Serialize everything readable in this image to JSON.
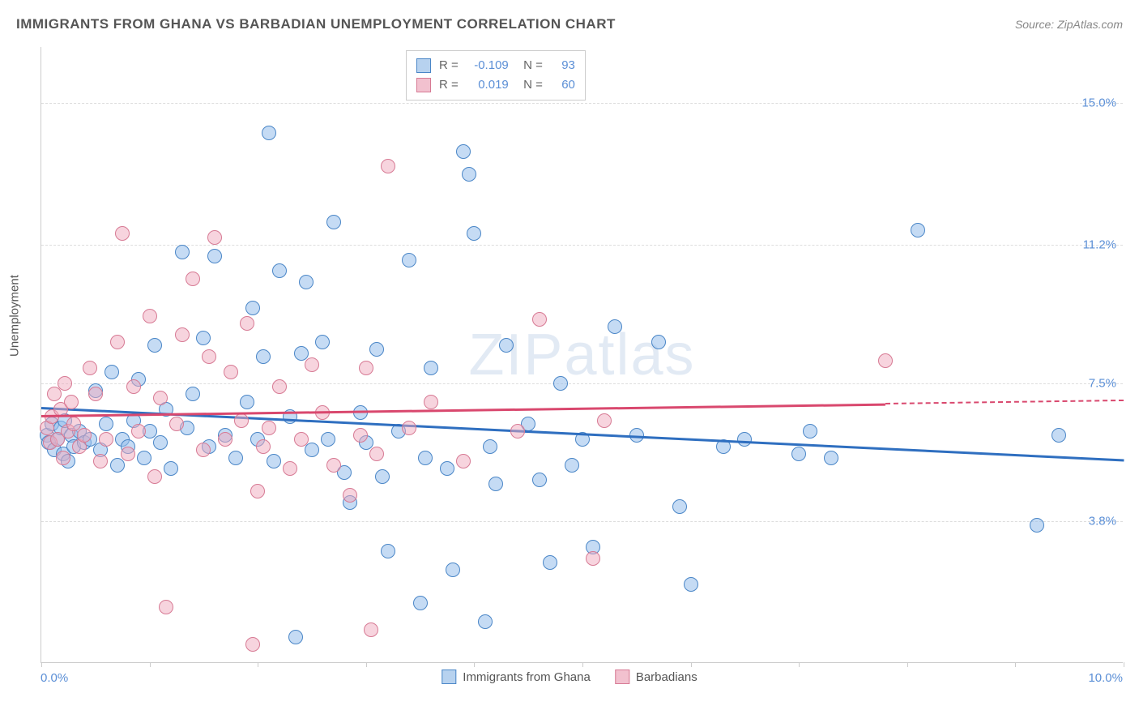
{
  "title": "IMMIGRANTS FROM GHANA VS BARBADIAN UNEMPLOYMENT CORRELATION CHART",
  "source_label": "Source:",
  "source_value": "ZipAtlas.com",
  "watermark": "ZIPatlas",
  "y_axis_title": "Unemployment",
  "chart": {
    "type": "scatter",
    "xlim": [
      0,
      10
    ],
    "ylim": [
      0,
      16.5
    ],
    "x_axis_min_label": "0.0%",
    "x_axis_max_label": "10.0%",
    "x_ticks": [
      0,
      1,
      2,
      3,
      4,
      5,
      6,
      7,
      8,
      9,
      10
    ],
    "y_gridlines": [
      {
        "value": 3.8,
        "label": "3.8%"
      },
      {
        "value": 7.5,
        "label": "7.5%"
      },
      {
        "value": 11.2,
        "label": "11.2%"
      },
      {
        "value": 15.0,
        "label": "15.0%"
      }
    ],
    "background_color": "#ffffff",
    "grid_color": "#dddddd",
    "axis_color": "#cccccc",
    "tick_label_color": "#5b8fd6",
    "marker_radius": 9,
    "series": [
      {
        "name": "Immigrants from Ghana",
        "key": "ghana",
        "fill_color": "rgba(150,190,235,0.55)",
        "stroke_color": "#4a86c7",
        "legend_swatch_fill": "#b7d2ef",
        "R": "-0.109",
        "N": "93",
        "trend": {
          "x1": 0,
          "y1": 6.85,
          "x2": 10,
          "y2": 5.45,
          "color": "#2f6fc0",
          "width": 2.5,
          "dashed_from_x": null
        },
        "points": [
          [
            0.05,
            6.1
          ],
          [
            0.07,
            5.9
          ],
          [
            0.1,
            6.4
          ],
          [
            0.12,
            5.7
          ],
          [
            0.15,
            6.0
          ],
          [
            0.18,
            6.3
          ],
          [
            0.2,
            5.6
          ],
          [
            0.22,
            6.5
          ],
          [
            0.25,
            5.4
          ],
          [
            0.28,
            6.1
          ],
          [
            0.3,
            5.8
          ],
          [
            0.35,
            6.2
          ],
          [
            0.4,
            5.9
          ],
          [
            0.45,
            6.0
          ],
          [
            0.5,
            7.3
          ],
          [
            0.55,
            5.7
          ],
          [
            0.6,
            6.4
          ],
          [
            0.65,
            7.8
          ],
          [
            0.7,
            5.3
          ],
          [
            0.75,
            6.0
          ],
          [
            0.8,
            5.8
          ],
          [
            0.85,
            6.5
          ],
          [
            0.9,
            7.6
          ],
          [
            0.95,
            5.5
          ],
          [
            1.0,
            6.2
          ],
          [
            1.05,
            8.5
          ],
          [
            1.1,
            5.9
          ],
          [
            1.15,
            6.8
          ],
          [
            1.2,
            5.2
          ],
          [
            1.3,
            11.0
          ],
          [
            1.35,
            6.3
          ],
          [
            1.4,
            7.2
          ],
          [
            1.5,
            8.7
          ],
          [
            1.55,
            5.8
          ],
          [
            1.6,
            10.9
          ],
          [
            1.7,
            6.1
          ],
          [
            1.8,
            5.5
          ],
          [
            1.9,
            7.0
          ],
          [
            1.95,
            9.5
          ],
          [
            2.0,
            6.0
          ],
          [
            2.05,
            8.2
          ],
          [
            2.1,
            14.2
          ],
          [
            2.15,
            5.4
          ],
          [
            2.2,
            10.5
          ],
          [
            2.3,
            6.6
          ],
          [
            2.35,
            0.7
          ],
          [
            2.4,
            8.3
          ],
          [
            2.45,
            10.2
          ],
          [
            2.5,
            5.7
          ],
          [
            2.6,
            8.6
          ],
          [
            2.65,
            6.0
          ],
          [
            2.7,
            11.8
          ],
          [
            2.8,
            5.1
          ],
          [
            2.85,
            4.3
          ],
          [
            2.95,
            6.7
          ],
          [
            3.0,
            5.9
          ],
          [
            3.1,
            8.4
          ],
          [
            3.15,
            5.0
          ],
          [
            3.2,
            3.0
          ],
          [
            3.3,
            6.2
          ],
          [
            3.4,
            10.8
          ],
          [
            3.5,
            1.6
          ],
          [
            3.55,
            5.5
          ],
          [
            3.6,
            7.9
          ],
          [
            3.75,
            5.2
          ],
          [
            3.8,
            2.5
          ],
          [
            3.9,
            13.7
          ],
          [
            3.95,
            13.1
          ],
          [
            4.0,
            11.5
          ],
          [
            4.1,
            1.1
          ],
          [
            4.15,
            5.8
          ],
          [
            4.2,
            4.8
          ],
          [
            4.3,
            8.5
          ],
          [
            4.5,
            6.4
          ],
          [
            4.6,
            4.9
          ],
          [
            4.7,
            2.7
          ],
          [
            4.8,
            7.5
          ],
          [
            4.9,
            5.3
          ],
          [
            5.0,
            6.0
          ],
          [
            5.1,
            3.1
          ],
          [
            5.3,
            9.0
          ],
          [
            5.5,
            6.1
          ],
          [
            5.7,
            8.6
          ],
          [
            5.9,
            4.2
          ],
          [
            6.0,
            2.1
          ],
          [
            6.3,
            5.8
          ],
          [
            6.5,
            6.0
          ],
          [
            7.0,
            5.6
          ],
          [
            7.1,
            6.2
          ],
          [
            7.3,
            5.5
          ],
          [
            8.1,
            11.6
          ],
          [
            9.2,
            3.7
          ],
          [
            9.4,
            6.1
          ]
        ]
      },
      {
        "name": "Barbadians",
        "key": "barbadians",
        "fill_color": "rgba(240,170,190,0.5)",
        "stroke_color": "#d77a94",
        "legend_swatch_fill": "#f2c1cf",
        "R": "0.019",
        "N": "60",
        "trend": {
          "x1": 0,
          "y1": 6.65,
          "x2": 10,
          "y2": 7.05,
          "color": "#d9486e",
          "width": 2.5,
          "dashed_from_x": 7.8
        },
        "points": [
          [
            0.05,
            6.3
          ],
          [
            0.08,
            5.9
          ],
          [
            0.1,
            6.6
          ],
          [
            0.12,
            7.2
          ],
          [
            0.15,
            6.0
          ],
          [
            0.18,
            6.8
          ],
          [
            0.2,
            5.5
          ],
          [
            0.22,
            7.5
          ],
          [
            0.25,
            6.2
          ],
          [
            0.28,
            7.0
          ],
          [
            0.3,
            6.4
          ],
          [
            0.35,
            5.8
          ],
          [
            0.4,
            6.1
          ],
          [
            0.45,
            7.9
          ],
          [
            0.5,
            7.2
          ],
          [
            0.55,
            5.4
          ],
          [
            0.6,
            6.0
          ],
          [
            0.7,
            8.6
          ],
          [
            0.75,
            11.5
          ],
          [
            0.8,
            5.6
          ],
          [
            0.85,
            7.4
          ],
          [
            0.9,
            6.2
          ],
          [
            1.0,
            9.3
          ],
          [
            1.05,
            5.0
          ],
          [
            1.1,
            7.1
          ],
          [
            1.15,
            1.5
          ],
          [
            1.25,
            6.4
          ],
          [
            1.3,
            8.8
          ],
          [
            1.4,
            10.3
          ],
          [
            1.5,
            5.7
          ],
          [
            1.55,
            8.2
          ],
          [
            1.6,
            11.4
          ],
          [
            1.7,
            6.0
          ],
          [
            1.75,
            7.8
          ],
          [
            1.85,
            6.5
          ],
          [
            1.9,
            9.1
          ],
          [
            1.95,
            0.5
          ],
          [
            2.0,
            4.6
          ],
          [
            2.05,
            5.8
          ],
          [
            2.1,
            6.3
          ],
          [
            2.2,
            7.4
          ],
          [
            2.3,
            5.2
          ],
          [
            2.4,
            6.0
          ],
          [
            2.5,
            8.0
          ],
          [
            2.6,
            6.7
          ],
          [
            2.7,
            5.3
          ],
          [
            2.85,
            4.5
          ],
          [
            2.95,
            6.1
          ],
          [
            3.0,
            7.9
          ],
          [
            3.05,
            0.9
          ],
          [
            3.1,
            5.6
          ],
          [
            3.2,
            13.3
          ],
          [
            3.4,
            6.3
          ],
          [
            3.6,
            7.0
          ],
          [
            3.9,
            5.4
          ],
          [
            4.4,
            6.2
          ],
          [
            4.6,
            9.2
          ],
          [
            5.1,
            2.8
          ],
          [
            5.2,
            6.5
          ],
          [
            7.8,
            8.1
          ]
        ]
      }
    ]
  },
  "bottom_legend": [
    {
      "label": "Immigrants from Ghana",
      "swatch_fill": "#b7d2ef",
      "swatch_stroke": "#4a86c7"
    },
    {
      "label": "Barbadians",
      "swatch_fill": "#f2c1cf",
      "swatch_stroke": "#d77a94"
    }
  ]
}
